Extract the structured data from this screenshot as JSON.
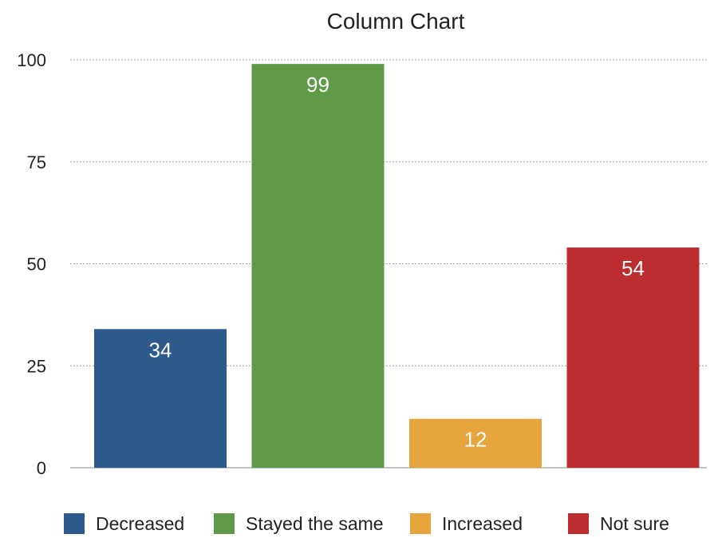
{
  "chart_data": {
    "type": "bar",
    "title": "Column Chart",
    "xlabel": "",
    "ylabel": "",
    "ylim": [
      0,
      100
    ],
    "yticks": [
      0,
      25,
      50,
      75,
      100
    ],
    "grid": true,
    "legend_position": "bottom",
    "categories": [
      "Decreased",
      "Stayed the same",
      "Increased",
      "Not sure"
    ],
    "values": [
      34,
      99,
      12,
      54
    ],
    "data_labels": [
      "34",
      "99",
      "12",
      "54"
    ],
    "colors": [
      "#2e5a8b",
      "#5e9a48",
      "#e6a43c",
      "#bc2d30"
    ]
  }
}
